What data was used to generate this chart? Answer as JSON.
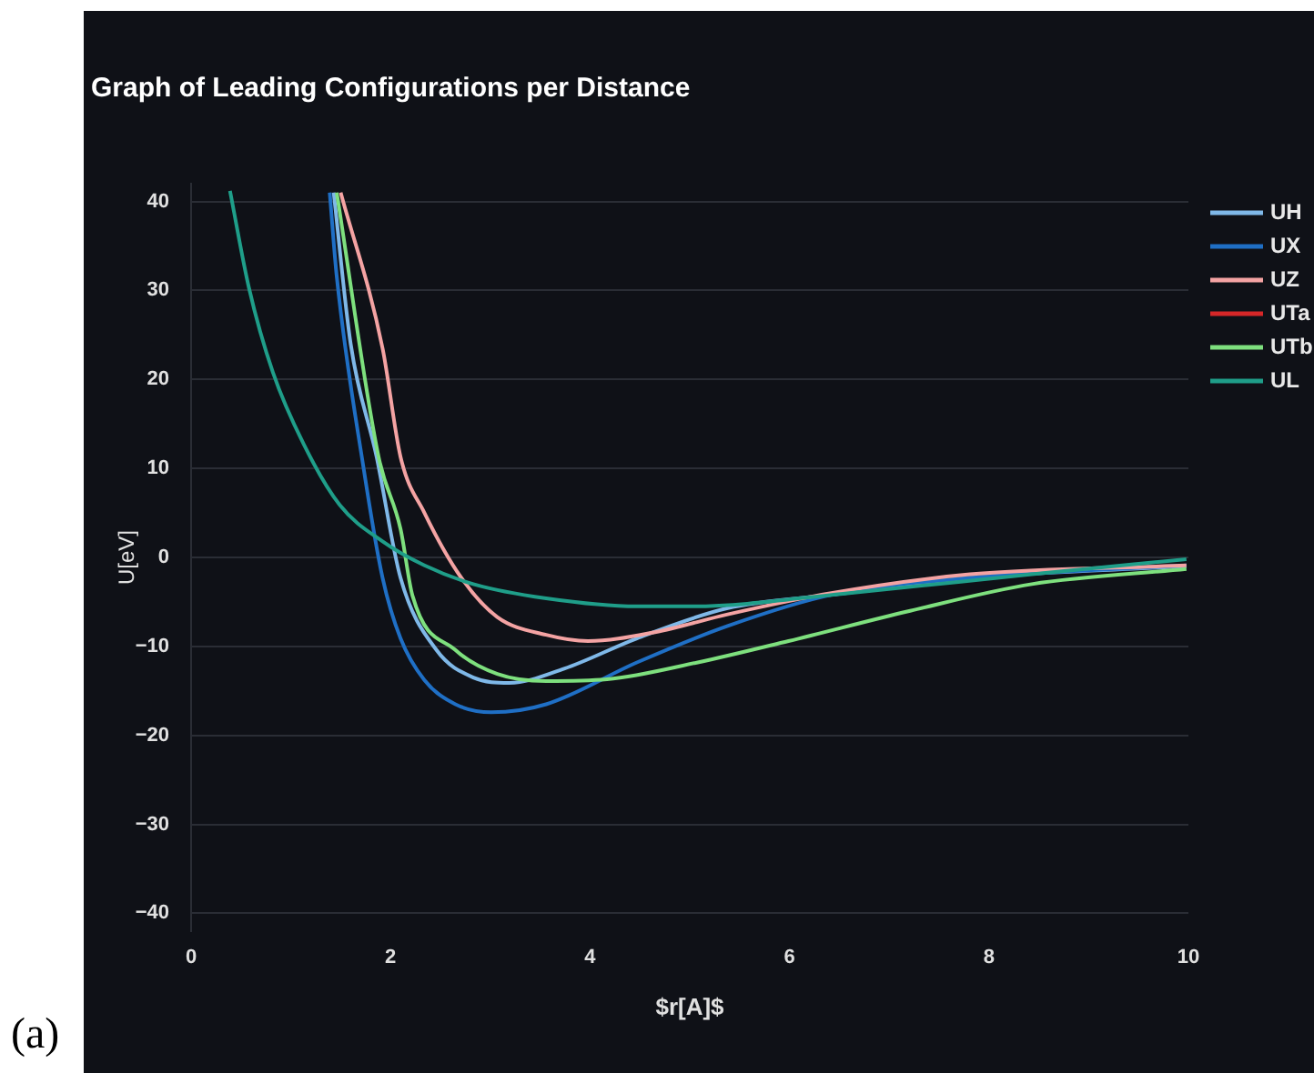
{
  "chart_data": {
    "type": "line",
    "title": "Graph of Leading Configurations per Distance",
    "xlabel": "$r[A]$",
    "ylabel": "U[eV]",
    "xlim": [
      0,
      10
    ],
    "xticks": [
      0,
      2,
      4,
      6,
      8,
      10
    ],
    "ylim": [
      -42,
      42
    ],
    "yticks": [
      -40,
      -30,
      -20,
      -10,
      0,
      10,
      20,
      30,
      40
    ],
    "grid": "y",
    "legend": "right",
    "line_style": "solid",
    "marker": "none",
    "annotations": [
      "(a)"
    ],
    "series": [
      {
        "name": "UH",
        "color": "#7fb8e8",
        "x": [
          1.43,
          1.6,
          1.86,
          2.1,
          2.46,
          2.83,
          3.19,
          3.74,
          4.47,
          5.38,
          6.42,
          7.81,
          9.98
        ],
        "values": [
          41,
          24,
          11.3,
          -2.3,
          -10.4,
          -13.5,
          -14.1,
          -12.5,
          -9.1,
          -5.7,
          -4.2,
          -2.3,
          -1
        ]
      },
      {
        "name": "UX",
        "color": "#1f6fc5",
        "x": [
          1.39,
          1.46,
          1.73,
          1.92,
          2.1,
          2.34,
          2.65,
          3.01,
          3.56,
          4.47,
          5.38,
          6.42,
          7.81,
          9.98
        ],
        "values": [
          41,
          31.6,
          10,
          -2.3,
          -9.1,
          -13.8,
          -16.5,
          -17.4,
          -16.5,
          -11.8,
          -7.7,
          -4.2,
          -2.3,
          -0.9
        ]
      },
      {
        "name": "UZ",
        "color": "#f4a3a3",
        "x": [
          1.5,
          1.92,
          2.1,
          2.34,
          2.71,
          3.07,
          3.56,
          3.98,
          4.65,
          5.38,
          6.42,
          7.81,
          9.98
        ],
        "values": [
          41,
          23.5,
          11.3,
          5,
          -2.3,
          -6.7,
          -8.7,
          -9.4,
          -8.4,
          -6.4,
          -4,
          -1.9,
          -0.9
        ]
      },
      {
        "name": "UTa",
        "color": "#d62728"
      },
      {
        "name": "UTb",
        "color": "#7ee07e",
        "x": [
          1.46,
          1.88,
          2.1,
          2.22,
          2.65,
          3.07,
          3.56,
          4.17,
          5.08,
          5.99,
          7.21,
          8.43,
          9.98
        ],
        "values": [
          41,
          11.3,
          3.2,
          -4.3,
          -10.4,
          -13.1,
          -13.9,
          -13.7,
          -11.8,
          -9.4,
          -6,
          -3,
          -1.3
        ]
      },
      {
        "name": "UL",
        "color": "#1f9e89",
        "x": [
          0.39,
          0.58,
          0.82,
          1.13,
          1.49,
          1.92,
          2.34,
          2.83,
          3.56,
          4.47,
          5.02,
          6.6,
          8.43,
          9.98
        ],
        "values": [
          41.2,
          30.3,
          20.8,
          12.7,
          5.9,
          1.8,
          -0.9,
          -3,
          -4.6,
          -5.5,
          -5.5,
          -4,
          -1.9,
          -0.2
        ]
      }
    ]
  }
}
